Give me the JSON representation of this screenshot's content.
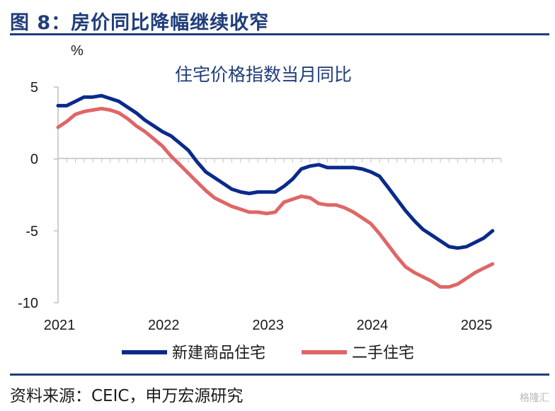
{
  "figure": {
    "title": "图 8：房价同比降幅继续收窄",
    "source": "资料来源：CEIC，申万宏源研究",
    "watermark": "格隆汇"
  },
  "colors": {
    "accent": "#1f3d7a",
    "series_new": "#0a2a8c",
    "series_used": "#e06666"
  },
  "chart_data": {
    "type": "line",
    "title": "住宅价格指数当月同比",
    "ylabel": "%",
    "ylim": [
      -10,
      5
    ],
    "yticks": [
      5,
      0,
      -5,
      -10
    ],
    "xlim": [
      2021.0,
      2025.25
    ],
    "xticks": [
      2021,
      2022,
      2023,
      2024,
      2025
    ],
    "grid": false,
    "legend": "bottom",
    "series": [
      {
        "name": "新建商品住宅",
        "color": "#0a2a8c",
        "x": [
          2021.0,
          2021.083,
          2021.167,
          2021.25,
          2021.333,
          2021.417,
          2021.5,
          2021.583,
          2021.667,
          2021.75,
          2021.833,
          2021.917,
          2022.0,
          2022.083,
          2022.167,
          2022.25,
          2022.333,
          2022.417,
          2022.5,
          2022.583,
          2022.667,
          2022.75,
          2022.833,
          2022.917,
          2023.0,
          2023.083,
          2023.167,
          2023.25,
          2023.333,
          2023.417,
          2023.5,
          2023.583,
          2023.667,
          2023.75,
          2023.833,
          2023.917,
          2024.0,
          2024.083,
          2024.167,
          2024.25,
          2024.333,
          2024.417,
          2024.5,
          2024.583,
          2024.667,
          2024.75,
          2024.833,
          2024.917,
          2025.0,
          2025.083,
          2025.167
        ],
        "y": [
          3.7,
          3.7,
          4.0,
          4.3,
          4.3,
          4.4,
          4.2,
          4.0,
          3.6,
          3.2,
          2.7,
          2.3,
          1.9,
          1.6,
          1.1,
          0.6,
          -0.2,
          -0.9,
          -1.3,
          -1.7,
          -2.1,
          -2.3,
          -2.4,
          -2.3,
          -2.3,
          -2.3,
          -1.9,
          -1.4,
          -0.7,
          -0.5,
          -0.4,
          -0.6,
          -0.6,
          -0.6,
          -0.6,
          -0.7,
          -0.9,
          -1.2,
          -2.0,
          -2.8,
          -3.6,
          -4.3,
          -4.9,
          -5.3,
          -5.7,
          -6.1,
          -6.2,
          -6.1,
          -5.8,
          -5.5,
          -5.0
        ]
      },
      {
        "name": "二手住宅",
        "color": "#e06666",
        "x": [
          2021.0,
          2021.083,
          2021.167,
          2021.25,
          2021.333,
          2021.417,
          2021.5,
          2021.583,
          2021.667,
          2021.75,
          2021.833,
          2021.917,
          2022.0,
          2022.083,
          2022.167,
          2022.25,
          2022.333,
          2022.417,
          2022.5,
          2022.583,
          2022.667,
          2022.75,
          2022.833,
          2022.917,
          2023.0,
          2023.083,
          2023.167,
          2023.25,
          2023.333,
          2023.417,
          2023.5,
          2023.583,
          2023.667,
          2023.75,
          2023.833,
          2023.917,
          2024.0,
          2024.083,
          2024.167,
          2024.25,
          2024.333,
          2024.417,
          2024.5,
          2024.583,
          2024.667,
          2024.75,
          2024.833,
          2024.917,
          2025.0,
          2025.083,
          2025.167
        ],
        "y": [
          2.2,
          2.6,
          3.1,
          3.3,
          3.4,
          3.5,
          3.4,
          3.2,
          2.8,
          2.3,
          1.9,
          1.4,
          0.9,
          0.2,
          -0.4,
          -1.0,
          -1.6,
          -2.2,
          -2.7,
          -3.0,
          -3.3,
          -3.5,
          -3.7,
          -3.7,
          -3.8,
          -3.7,
          -3.0,
          -2.8,
          -2.6,
          -2.7,
          -3.1,
          -3.2,
          -3.2,
          -3.4,
          -3.7,
          -4.1,
          -4.5,
          -5.2,
          -6.0,
          -6.8,
          -7.5,
          -7.9,
          -8.2,
          -8.5,
          -8.9,
          -8.9,
          -8.7,
          -8.3,
          -7.9,
          -7.6,
          -7.3
        ]
      }
    ]
  }
}
